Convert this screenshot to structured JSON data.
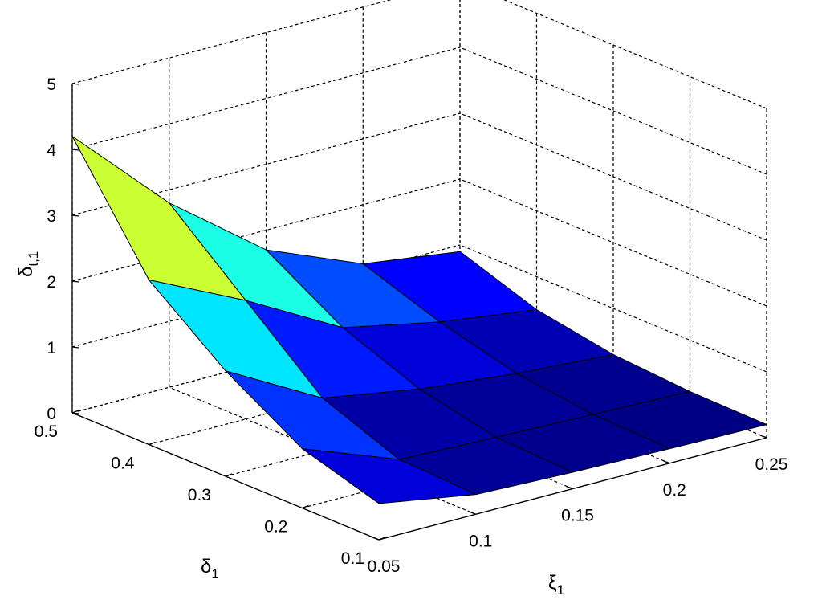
{
  "chart_data": {
    "type": "surface",
    "title": "",
    "xlabel": "ξ1",
    "ylabel": "δ1",
    "zlabel": "δt,1",
    "x_ticks": [
      "0.05",
      "0.1",
      "0.15",
      "0.2",
      "0.25"
    ],
    "y_ticks": [
      "0.1",
      "0.2",
      "0.3",
      "0.4",
      "0.5"
    ],
    "z_ticks": [
      "0",
      "1",
      "2",
      "3",
      "4",
      "5"
    ],
    "xlim": [
      0.05,
      0.25
    ],
    "ylim": [
      0.1,
      0.5
    ],
    "zlim": [
      0,
      5
    ],
    "grid": true,
    "colormap": "jet",
    "x": [
      0.05,
      0.1,
      0.15,
      0.2,
      0.25
    ],
    "y": [
      0.1,
      0.2,
      0.3,
      0.4,
      0.5
    ],
    "z": [
      [
        0.55,
        0.3,
        0.25,
        0.22,
        0.2
      ],
      [
        0.9,
        0.35,
        0.3,
        0.26,
        0.22
      ],
      [
        1.6,
        0.8,
        0.55,
        0.4,
        0.3
      ],
      [
        2.5,
        1.8,
        1.0,
        0.7,
        0.5
      ],
      [
        4.2,
        2.8,
        1.7,
        1.1,
        0.9
      ]
    ]
  }
}
